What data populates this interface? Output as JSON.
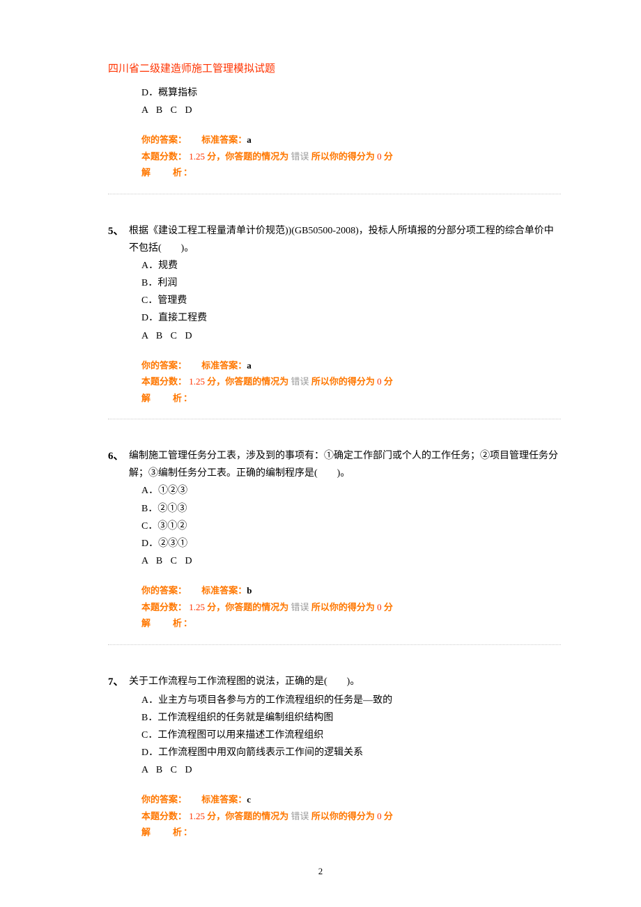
{
  "header": "四川省二级建造师施工管理模拟试题",
  "labels": {
    "abcd": "A   B   C   D",
    "your_answer": "你的答案：",
    "std_answer": "标准答案：",
    "score_label": "本题分数：",
    "fen": "分，",
    "situation": "你答题的情况为",
    "wrong": "错误",
    "so_score": "所以你的得分为",
    "fen2": "分",
    "analysis": "解　　析："
  },
  "page_number": "2",
  "questions": [
    {
      "num": "",
      "stem": "",
      "options": [
        "D．概算指标"
      ],
      "std": "a",
      "score": "1.25",
      "got": "0"
    },
    {
      "num": "5、",
      "stem": "根据《建设工程工程量清单计价规范))(GB50500-2008)，投标人所填报的分部分项工程的综合单价中不包括(　　)。",
      "options": [
        "A．规费",
        "B．利润",
        "C．管理费",
        "D．直接工程费"
      ],
      "std": "a",
      "score": "1.25",
      "got": "0"
    },
    {
      "num": "6、",
      "stem": "编制施工管理任务分工表，涉及到的事项有：①确定工作部门或个人的工作任务；②项目管理任务分解；③编制任务分工表。正确的编制程序是(　　)。",
      "options": [
        "A．①②③",
        "B．②①③",
        "C．③①②",
        "D．②③①"
      ],
      "std": "b",
      "score": "1.25",
      "got": "0"
    },
    {
      "num": "7、",
      "stem": "关于工作流程与工作流程图的说法，正确的是(　　)。",
      "options": [
        "A．业主方与项目各参与方的工作流程组织的任务是—致的",
        "B．工作流程组织的任务就是编制组织结构图",
        "C．工作流程图可以用来描述工作流程组织",
        "D．工作流程图中用双向箭线表示工作间的逻辑关系"
      ],
      "std": "c",
      "score": "1.25",
      "got": "0"
    }
  ]
}
